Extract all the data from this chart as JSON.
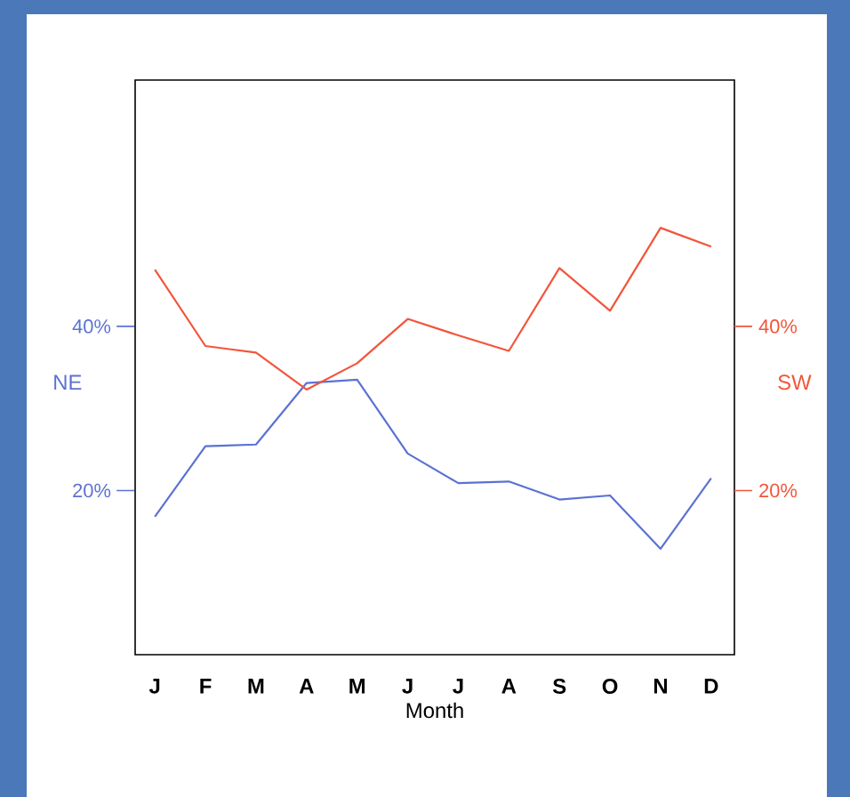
{
  "chart_data": {
    "type": "line",
    "xlabel": "Month",
    "ylabel": "NE",
    "y2label": "SW",
    "categories": [
      "J",
      "F",
      "M",
      "A",
      "M",
      "J",
      "J",
      "A",
      "S",
      "O",
      "N",
      "D"
    ],
    "ylim": [
      0,
      70
    ],
    "yticks": [
      {
        "value": 20,
        "label": "20%"
      },
      {
        "value": 40,
        "label": "40%"
      }
    ],
    "y2lim": [
      0,
      70
    ],
    "y2ticks": [
      {
        "value": 20,
        "label": "20%"
      },
      {
        "value": 40,
        "label": "40%"
      }
    ],
    "series": [
      {
        "color": "#5b72d2",
        "values": [
          16.8,
          25.4,
          25.6,
          33.1,
          33.5,
          24.5,
          20.9,
          21.1,
          18.9,
          19.4,
          12.9,
          21.5
        ]
      },
      {
        "color": "#f2553b",
        "axis": "y2",
        "values": [
          46.9,
          37.6,
          36.8,
          32.3,
          35.5,
          40.9,
          38.9,
          37.0,
          47.1,
          41.9,
          52.0,
          49.7
        ]
      }
    ]
  }
}
